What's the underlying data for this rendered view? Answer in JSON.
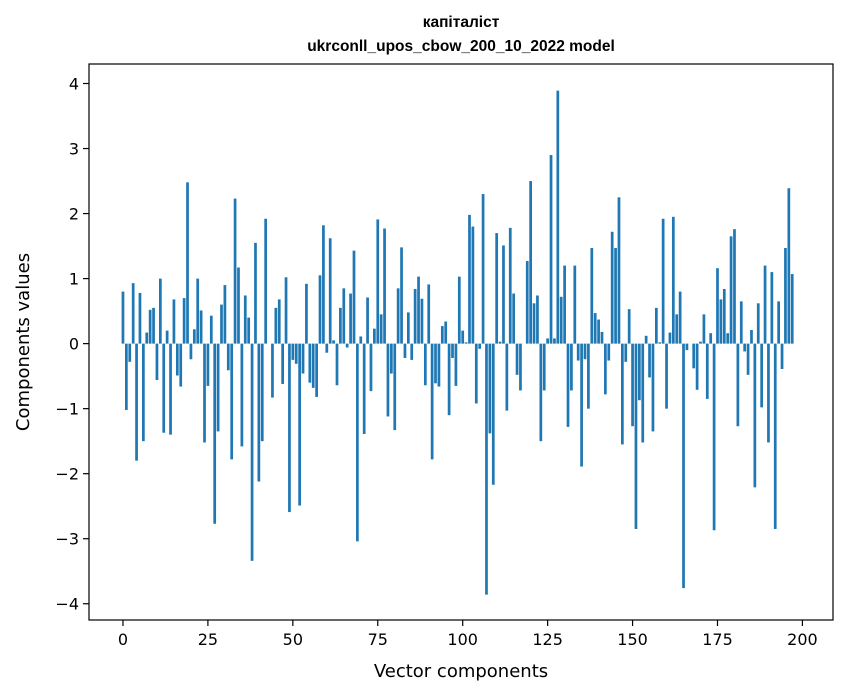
{
  "chart_data": {
    "type": "bar",
    "title": "капіталіст",
    "subtitle": "ukrconll_upos_cbow_200_10_2022 model",
    "xlabel": "Vector components",
    "ylabel": "Components values",
    "xlim": [
      -10,
      209
    ],
    "ylim": [
      -4.25,
      4.3
    ],
    "xticks": [
      0,
      25,
      50,
      75,
      100,
      125,
      150,
      175,
      200
    ],
    "yticks": [
      -4,
      -3,
      -2,
      -1,
      0,
      1,
      2,
      3,
      4
    ],
    "grid": false,
    "bar_color": "#1f77b4",
    "values": [
      0.8,
      -1.02,
      -0.28,
      0.93,
      -1.8,
      0.78,
      -1.5,
      0.17,
      0.52,
      0.55,
      -0.56,
      1.0,
      -1.37,
      0.2,
      -1.4,
      0.68,
      -0.49,
      -0.66,
      0.7,
      2.48,
      -0.24,
      0.22,
      1.0,
      0.51,
      -1.52,
      -0.65,
      0.43,
      -2.77,
      -1.35,
      0.6,
      0.9,
      -0.41,
      -1.78,
      2.23,
      1.17,
      -1.58,
      0.74,
      0.4,
      -3.34,
      1.55,
      -2.12,
      -1.5,
      1.92,
      0.0,
      -0.83,
      0.55,
      0.68,
      -0.62,
      1.02,
      -2.59,
      -0.25,
      -0.31,
      -2.49,
      -0.46,
      0.92,
      -0.6,
      -0.68,
      -0.82,
      1.05,
      1.82,
      -0.14,
      1.62,
      0.05,
      -0.64,
      0.55,
      0.85,
      -0.06,
      0.77,
      1.43,
      -3.04,
      0.11,
      -1.39,
      0.71,
      -0.73,
      0.23,
      1.91,
      0.45,
      1.77,
      -1.12,
      -0.46,
      -1.33,
      0.85,
      1.48,
      -0.22,
      0.48,
      -0.25,
      0.84,
      1.03,
      0.69,
      -0.64,
      0.91,
      -1.78,
      -0.61,
      -0.66,
      0.27,
      0.34,
      -1.1,
      -0.22,
      -0.65,
      1.03,
      0.2,
      0.02,
      1.98,
      1.8,
      -0.92,
      -0.08,
      2.3,
      -3.86,
      -1.38,
      -2.17,
      1.7,
      0.03,
      1.51,
      -1.03,
      1.78,
      0.77,
      -0.48,
      -0.72,
      0.0,
      1.27,
      2.5,
      0.62,
      0.74,
      -1.5,
      -0.72,
      0.08,
      2.9,
      0.08,
      3.89,
      0.72,
      1.2,
      -1.28,
      -0.72,
      1.2,
      -0.26,
      -1.89,
      -0.24,
      -1.0,
      1.47,
      0.47,
      0.37,
      0.18,
      -0.78,
      -0.26,
      1.72,
      1.47,
      2.25,
      -1.55,
      -0.28,
      0.53,
      -1.27,
      -2.85,
      -0.87,
      -1.52,
      0.12,
      -0.52,
      -1.35,
      0.55,
      0.02,
      1.92,
      -1.0,
      0.17,
      1.95,
      0.45,
      0.8,
      -3.76,
      -0.1,
      0.0,
      -0.38,
      -0.71,
      0.03,
      0.45,
      -0.85,
      0.16,
      -2.87,
      1.16,
      0.68,
      0.84,
      0.16,
      1.65,
      1.76,
      -1.27,
      0.65,
      -0.12,
      -0.48,
      0.21,
      -2.21,
      0.62,
      -0.98,
      1.2,
      -1.52,
      1.1,
      -2.85,
      0.65,
      -0.39,
      1.47,
      2.39,
      1.07
    ]
  }
}
